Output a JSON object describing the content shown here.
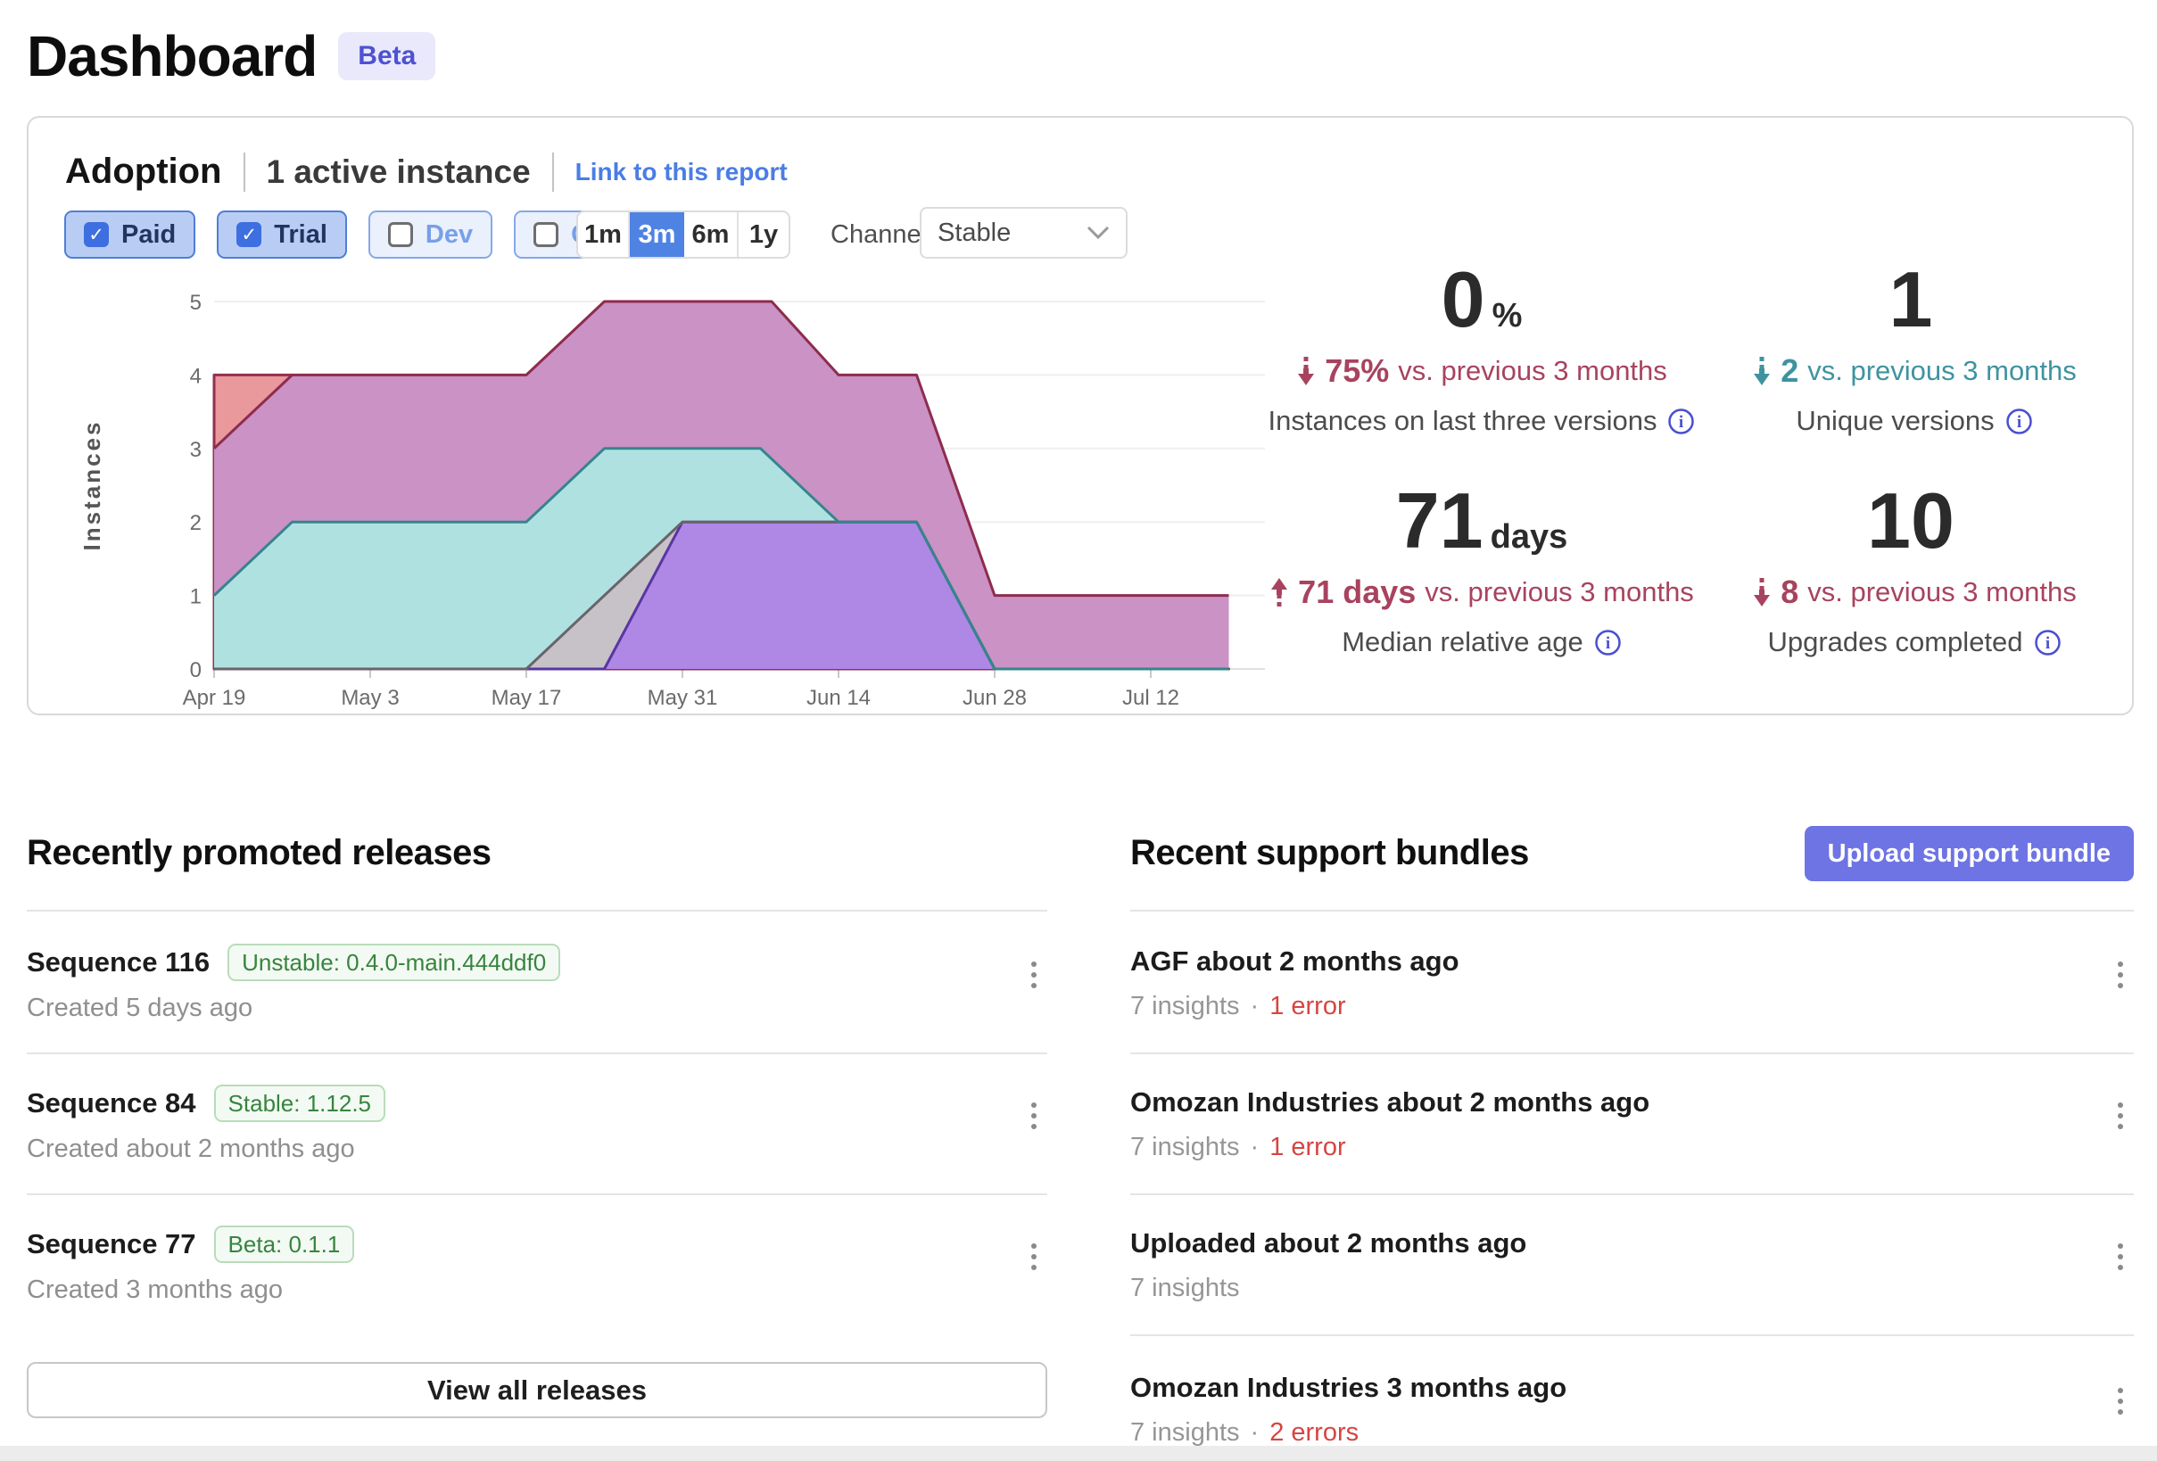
{
  "page": {
    "title": "Dashboard",
    "beta_badge": "Beta"
  },
  "adoption": {
    "title": "Adoption",
    "active_instances": "1 active instance",
    "link_label": "Link to this report",
    "filters": [
      {
        "label": "Paid",
        "checked": true
      },
      {
        "label": "Trial",
        "checked": true
      },
      {
        "label": "Dev",
        "checked": false
      },
      {
        "label": "Community",
        "checked": false
      }
    ],
    "ranges": [
      {
        "label": "1m",
        "selected": false
      },
      {
        "label": "3m",
        "selected": true
      },
      {
        "label": "6m",
        "selected": false
      },
      {
        "label": "1y",
        "selected": false
      }
    ],
    "channel_label": "Channel",
    "channel_value": "Stable",
    "stats": [
      {
        "value": "0",
        "suffix": "%",
        "direction": "down",
        "accent": "#a8435f",
        "delta_strong": "75%",
        "delta_rest": "vs. previous 3 months",
        "label": "Instances on last three versions"
      },
      {
        "value": "1",
        "suffix": "",
        "direction": "down",
        "accent": "#3f93a0",
        "delta_strong": "2",
        "delta_rest": "vs. previous 3 months",
        "label": "Unique versions"
      },
      {
        "value": "71",
        "suffix": "days",
        "direction": "up",
        "accent": "#a8435f",
        "delta_strong": "71 days",
        "delta_rest": "vs. previous 3 months",
        "label": "Median relative age"
      },
      {
        "value": "10",
        "suffix": "",
        "direction": "down",
        "accent": "#a8435f",
        "delta_strong": "8",
        "delta_rest": "vs. previous 3 months",
        "label": "Upgrades completed"
      }
    ]
  },
  "chart_data": {
    "type": "area",
    "ylabel": "Instances",
    "ylim": [
      0,
      5
    ],
    "y_ticks": [
      0,
      1,
      2,
      3,
      4,
      5
    ],
    "x_domain_days": [
      0,
      91
    ],
    "x_tick_days": [
      0,
      14,
      28,
      42,
      56,
      70,
      84
    ],
    "x_tick_labels": [
      "Apr 19",
      "May 3",
      "May 17",
      "May 31",
      "Jun 14",
      "Jun 28",
      "Jul 12"
    ],
    "grid": true,
    "legend": "none",
    "note": "days measured from Apr 19; overlapping per-version instance-count areas",
    "series": [
      {
        "name": "area-salmon",
        "fill": "#e9999c",
        "stroke": "#93304f",
        "points": [
          [
            0,
            4
          ],
          [
            7,
            4
          ],
          [
            14,
            0
          ],
          [
            91,
            0
          ]
        ]
      },
      {
        "name": "area-mauve",
        "fill": "#ca92c5",
        "stroke": "#8e2c4e",
        "points": [
          [
            0,
            3
          ],
          [
            7,
            4
          ],
          [
            28,
            4
          ],
          [
            35,
            5
          ],
          [
            50,
            5
          ],
          [
            56,
            4
          ],
          [
            63,
            4
          ],
          [
            70,
            1
          ],
          [
            91,
            1
          ]
        ]
      },
      {
        "name": "area-teal",
        "fill": "#b0e1e1",
        "stroke": "#35858d",
        "points": [
          [
            0,
            1
          ],
          [
            7,
            2
          ],
          [
            28,
            2
          ],
          [
            35,
            3
          ],
          [
            49,
            3
          ],
          [
            56,
            2
          ],
          [
            63,
            2
          ],
          [
            70,
            0
          ],
          [
            91,
            0
          ]
        ]
      },
      {
        "name": "area-gray",
        "fill": "#c7c2c8",
        "stroke": "#68646a",
        "points": [
          [
            0,
            0
          ],
          [
            28,
            0
          ],
          [
            42,
            2
          ],
          [
            63,
            2
          ],
          [
            70,
            0
          ],
          [
            91,
            0
          ]
        ]
      },
      {
        "name": "area-purple",
        "fill": "#af88e6",
        "stroke": "#5936a2",
        "points": [
          [
            0,
            0
          ],
          [
            35,
            0
          ],
          [
            42,
            2
          ],
          [
            63,
            2
          ],
          [
            70,
            0
          ],
          [
            91,
            0
          ]
        ]
      }
    ]
  },
  "releases": {
    "heading": "Recently promoted releases",
    "items": [
      {
        "title": "Sequence 116",
        "badge": "Unstable: 0.4.0-main.444ddf0",
        "created": "Created 5 days ago"
      },
      {
        "title": "Sequence 84",
        "badge": "Stable: 1.12.5",
        "created": "Created about 2 months ago"
      },
      {
        "title": "Sequence 77",
        "badge": "Beta: 0.1.1",
        "created": "Created 3 months ago"
      }
    ],
    "view_all_label": "View all releases"
  },
  "bundles": {
    "heading": "Recent support bundles",
    "upload_label": "Upload support bundle",
    "items": [
      {
        "title": "AGF about 2 months ago",
        "insights": "7 insights",
        "separator": "·",
        "errors": "1 error"
      },
      {
        "title": "Omozan Industries about 2 months ago",
        "insights": "7 insights",
        "separator": "·",
        "errors": "1 error"
      },
      {
        "title": "Uploaded about 2 months ago",
        "insights": "7 insights",
        "separator": "",
        "errors": ""
      },
      {
        "title": "Omozan Industries 3 months ago",
        "insights": "7 insights",
        "separator": "·",
        "errors": "2 errors"
      }
    ]
  }
}
